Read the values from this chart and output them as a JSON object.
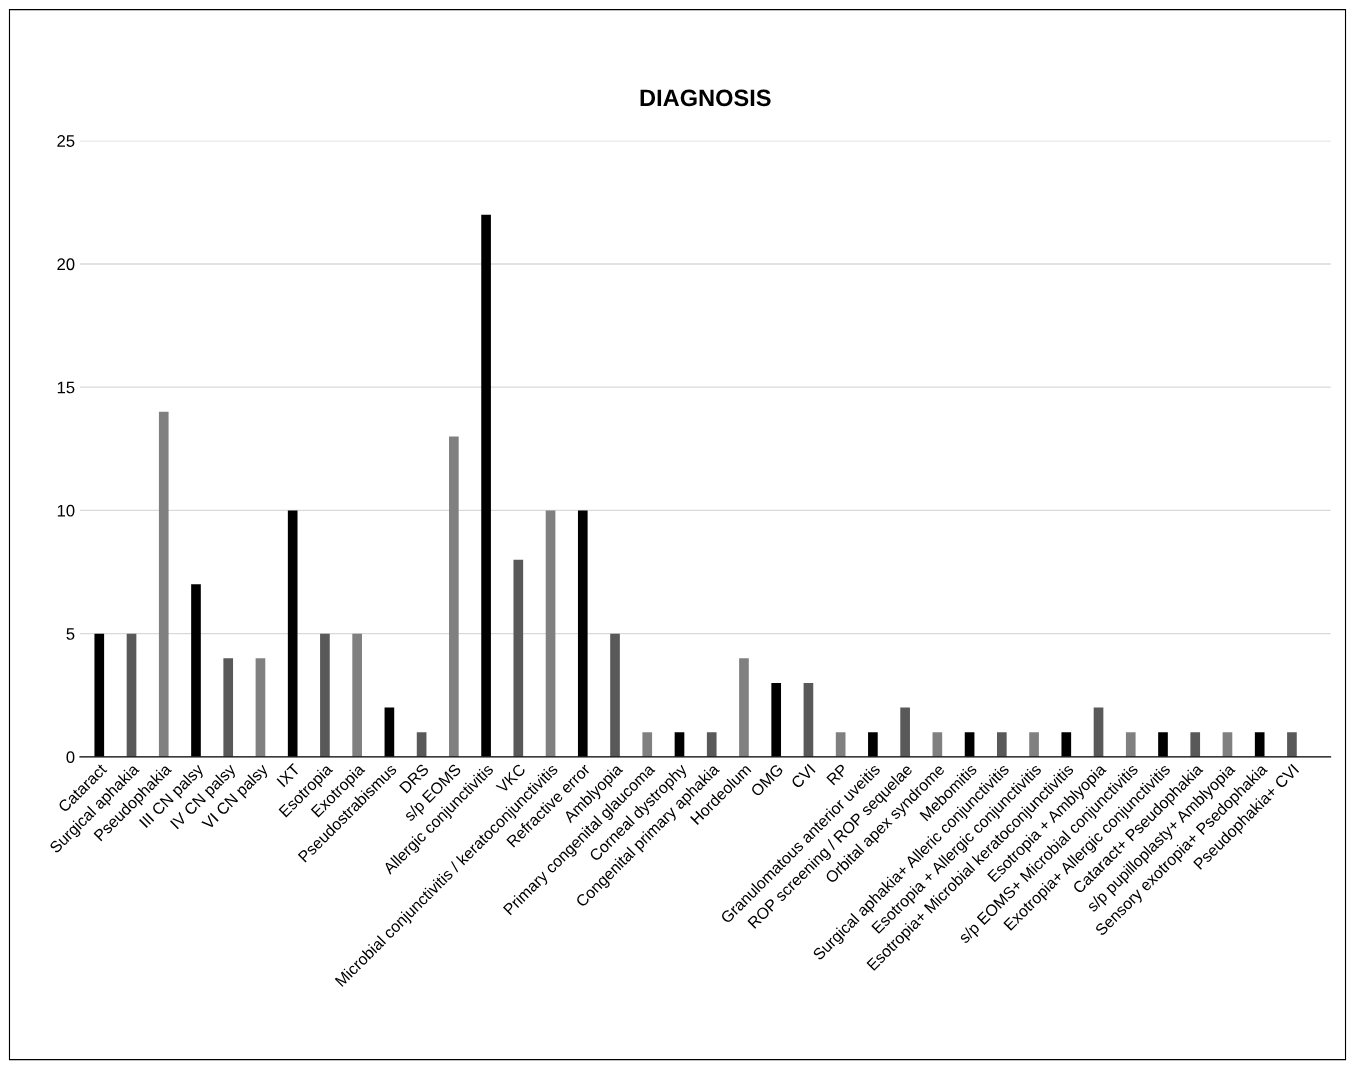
{
  "chart_data": {
    "type": "bar",
    "title": "DIAGNOSIS",
    "categories": [
      "Cataract",
      "Surgical aphakia",
      "Pseudophakia",
      "III CN palsy",
      "IV CN palsy",
      "VI CN palsy",
      "IXT",
      "Esotropia",
      "Exotropia",
      "Pseudostrabismus",
      "DRS",
      "s/p EOMS",
      "Allergic conjunctivitis",
      "VKC",
      "Microbial conjunctivitis / keratoconjunctivitis",
      "Refractive error",
      "Amblyopia",
      "Primary congenital glaucoma",
      "Corneal dystrophy",
      "Congenital primary aphakia",
      "Hordeolum",
      "OMG",
      "CVI",
      "RP",
      "Granulomatous anterior uveitis",
      "ROP screening / ROP sequelae",
      "Orbital apex syndrome",
      "Mebomitis",
      "Surgical aphakia+ Alleric conjunctivitis",
      "Esotropia + Allergic conjunctivitis",
      "Esotropia+ Microbial keratoconjunctivitis",
      "Esotropia + Amblyopia",
      "s/p EOMS+ Microbial conjunctivitis",
      "Exotropia+ Allergic conjunctivitis",
      "Cataract+ Pseudophakia",
      "s/p pupilloplasty+ Amblyopia",
      "Sensory exotropia+ Psedophakia",
      "Pseudophakia+ CVI"
    ],
    "values": [
      5,
      5,
      14,
      7,
      4,
      4,
      10,
      5,
      5,
      2,
      1,
      13,
      22,
      8,
      10,
      10,
      5,
      1,
      1,
      1,
      4,
      3,
      3,
      1,
      1,
      2,
      1,
      1,
      1,
      1,
      1,
      2,
      1,
      1,
      1,
      1,
      1,
      1
    ],
    "colors": [
      "#000000",
      "#595959",
      "#808080",
      "#000000",
      "#595959",
      "#808080",
      "#000000",
      "#595959",
      "#808080",
      "#000000",
      "#595959",
      "#808080",
      "#000000",
      "#595959",
      "#808080",
      "#000000",
      "#595959",
      "#808080",
      "#000000",
      "#595959",
      "#808080",
      "#000000",
      "#595959",
      "#808080",
      "#000000",
      "#595959",
      "#808080",
      "#000000",
      "#595959",
      "#808080",
      "#000000",
      "#595959",
      "#808080",
      "#000000",
      "#595959",
      "#808080",
      "#000000",
      "#595959"
    ],
    "ylim": [
      0,
      25
    ],
    "yticks": [
      0,
      5,
      10,
      15,
      20,
      25
    ],
    "grid": "y",
    "legend": false
  }
}
